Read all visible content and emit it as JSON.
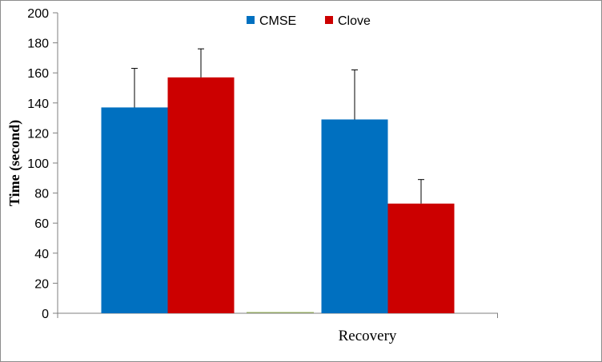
{
  "chart_data": {
    "type": "bar",
    "title": "",
    "xlabel": "Recovery",
    "ylabel": "Time (second)",
    "ylim": [
      0,
      200
    ],
    "yticks": [
      0,
      20,
      40,
      60,
      80,
      100,
      120,
      140,
      160,
      180,
      200
    ],
    "groups": 2,
    "categories": [
      "",
      ""
    ],
    "series": [
      {
        "name": "CMSE",
        "color": "#0070C0",
        "values": [
          137,
          129
        ],
        "errors": [
          26,
          33
        ]
      },
      {
        "name": "Clove",
        "color": "#CC0000",
        "values": [
          157,
          73
        ],
        "errors": [
          19,
          16
        ]
      }
    ],
    "legend": "top-center",
    "grid": false
  }
}
